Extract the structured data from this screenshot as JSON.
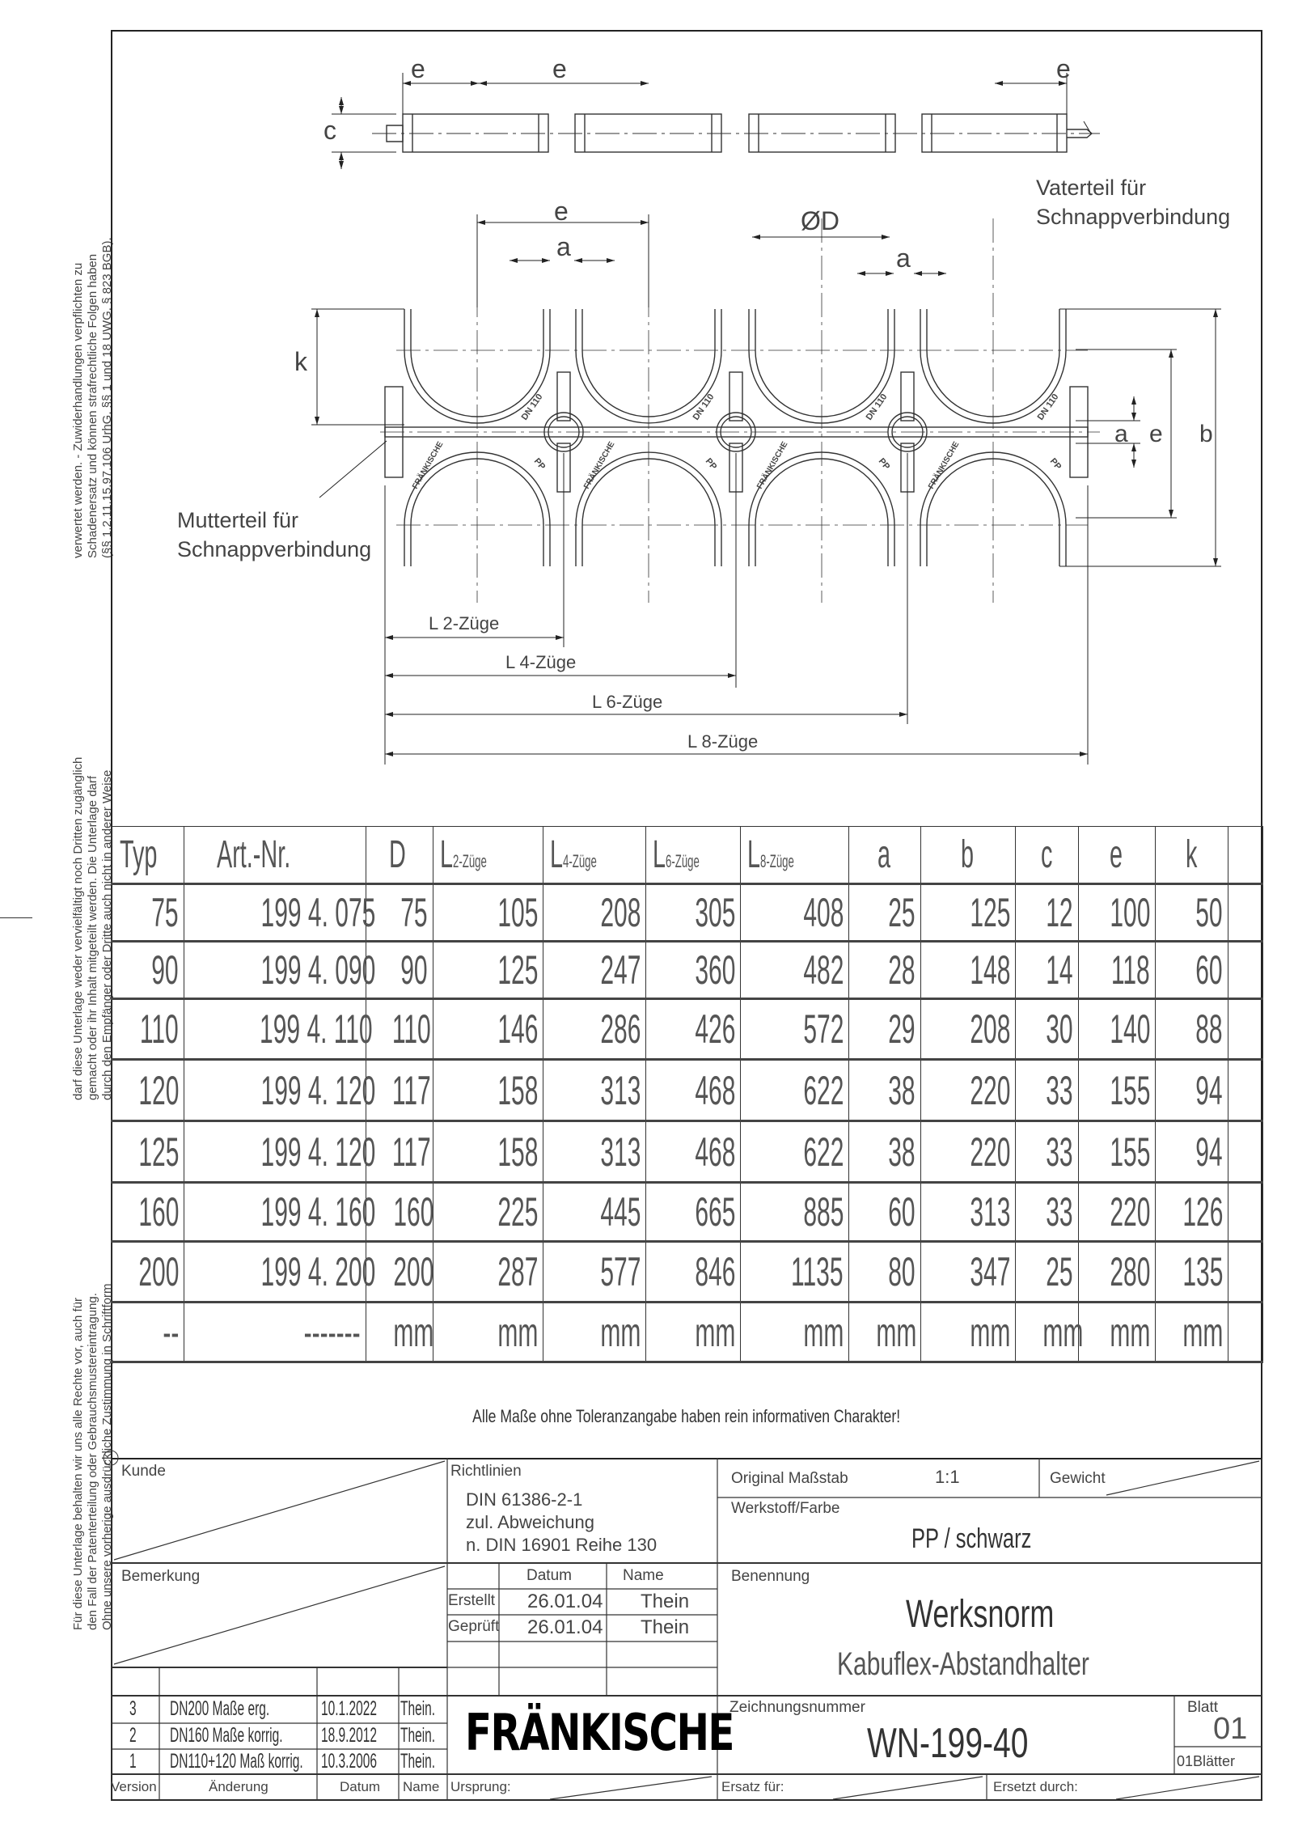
{
  "legal_notice": {
    "block_top": [
      "verwertet werden. - Zuwiderhandlungen verpflichten zu",
      "Schadenersatz und können strafrechtliche Folgen haben",
      "(§§ 1,2,11,15,97,106 UrhG, §§ 1 und 18 UWG, § 823 BGB)."
    ],
    "block_middle": [
      "darf diese Unterlage weder vervielfältigt noch Dritten zugänglich",
      "gemacht oder ihr Inhalt mitgeteilt werden. Die Unterlage darf",
      "durch den Empfänger oder Dritte auch nicht in anderer Weise"
    ],
    "block_bottom": [
      "Für diese Unterlage behalten wir uns alle Rechte vor, auch für",
      "den Fall der Patenterteilung oder Gebrauchsmustereintragung.",
      "Ohne unsere vorherige ausdrückliche Zustimmung in Schriftform"
    ]
  },
  "drawing": {
    "dim_e": "e",
    "dim_c": "c",
    "dim_a": "a",
    "dim_k": "k",
    "dim_b": "b",
    "dim_D": "ØD",
    "vaterteil": [
      "Vaterteil für",
      "Schnappverbindung"
    ],
    "mutterteil": [
      "Mutterteil für",
      "Schnappverbindung"
    ],
    "part_marks": {
      "dn": "DN 110",
      "brand": "FRÄNKISCHE",
      "material": "PP"
    },
    "lengths": [
      "L 2-Züge",
      "L 4-Züge",
      "L 6-Züge",
      "L 8-Züge"
    ]
  },
  "table": {
    "headers": [
      {
        "main": "Typ"
      },
      {
        "main": "Art.-Nr."
      },
      {
        "main": "D"
      },
      {
        "main": "L",
        "sub": "2-Züge"
      },
      {
        "main": "L",
        "sub": "4-Züge"
      },
      {
        "main": "L",
        "sub": "6-Züge"
      },
      {
        "main": "L",
        "sub": "8-Züge"
      },
      {
        "main": "a"
      },
      {
        "main": "b"
      },
      {
        "main": "c"
      },
      {
        "main": "e"
      },
      {
        "main": "k"
      },
      {
        "main": ""
      }
    ],
    "rows": [
      [
        "75",
        "199 4. 075",
        "75",
        "105",
        "208",
        "305",
        "408",
        "25",
        "125",
        "12",
        "100",
        "50",
        ""
      ],
      [
        "90",
        "199 4. 090",
        "90",
        "125",
        "247",
        "360",
        "482",
        "28",
        "148",
        "14",
        "118",
        "60",
        ""
      ],
      [
        "110",
        "199 4. 110",
        "110",
        "146",
        "286",
        "426",
        "572",
        "29",
        "208",
        "30",
        "140",
        "88",
        ""
      ],
      [
        "120",
        "199 4. 120",
        "117",
        "158",
        "313",
        "468",
        "622",
        "38",
        "220",
        "33",
        "155",
        "94",
        ""
      ],
      [
        "125",
        "199 4. 120",
        "117",
        "158",
        "313",
        "468",
        "622",
        "38",
        "220",
        "33",
        "155",
        "94",
        ""
      ],
      [
        "160",
        "199 4. 160",
        "160",
        "225",
        "445",
        "665",
        "885",
        "60",
        "313",
        "33",
        "220",
        "126",
        ""
      ],
      [
        "200",
        "199 4. 200",
        "200",
        "287",
        "577",
        "846",
        "1135",
        "80",
        "347",
        "25",
        "280",
        "135",
        ""
      ]
    ],
    "units": [
      "--",
      "-------",
      "mm",
      "mm",
      "mm",
      "mm",
      "mm",
      "mm",
      "mm",
      "mm",
      "mm",
      "mm",
      ""
    ]
  },
  "note": "Alle Maße ohne Toleranzangabe haben rein informativen Charakter!",
  "title_block": {
    "kunde": "Kunde",
    "bemerkung": "Bemerkung",
    "richtlinien": "Richtlinien",
    "richtlinien_lines": [
      "DIN 61386-2-1",
      "zul. Abweichung",
      "n. DIN 16901 Reihe 130"
    ],
    "massstab_label": "Original Maßstab",
    "massstab": "1:1",
    "gewicht": "Gewicht",
    "werkstoff_label": "Werkstoff/Farbe",
    "werkstoff": "PP / schwarz",
    "datum": "Datum",
    "name": "Name",
    "erstellt": {
      "label": "Erstellt",
      "datum": "26.01.04",
      "name": "Thein"
    },
    "geprueft": {
      "label": "Geprüft",
      "datum": "26.01.04",
      "name": "Thein"
    },
    "benennung_label": "Benennung",
    "benennung": "Werksnorm",
    "benennung_sub": "Kabuflex-Abstandhalter",
    "logo": "FRÄNKISCHE",
    "zeichnungsnummer_label": "Zeichnungsnummer",
    "zeichnungsnummer": "WN-199-40",
    "blatt_label": "Blatt",
    "blatt": "01",
    "blaetter": "01Blätter",
    "revisions": [
      {
        "version": "3",
        "aenderung": "DN200 Maße erg.",
        "datum": "10.1.2022",
        "name": "Thein."
      },
      {
        "version": "2",
        "aenderung": "DN160 Maße korrig.",
        "datum": "18.9.2012",
        "name": "Thein."
      },
      {
        "version": "1",
        "aenderung": "DN110+120 Maß korrig.",
        "datum": "10.3.2006",
        "name": "Thein."
      }
    ],
    "rev_headers": {
      "version": "Version",
      "aenderung": "Änderung",
      "datum": "Datum",
      "name": "Name"
    },
    "ursprung": "Ursprung:",
    "ersatz_fuer": "Ersatz für:",
    "ersetzt_durch": "Ersetzt durch:"
  }
}
